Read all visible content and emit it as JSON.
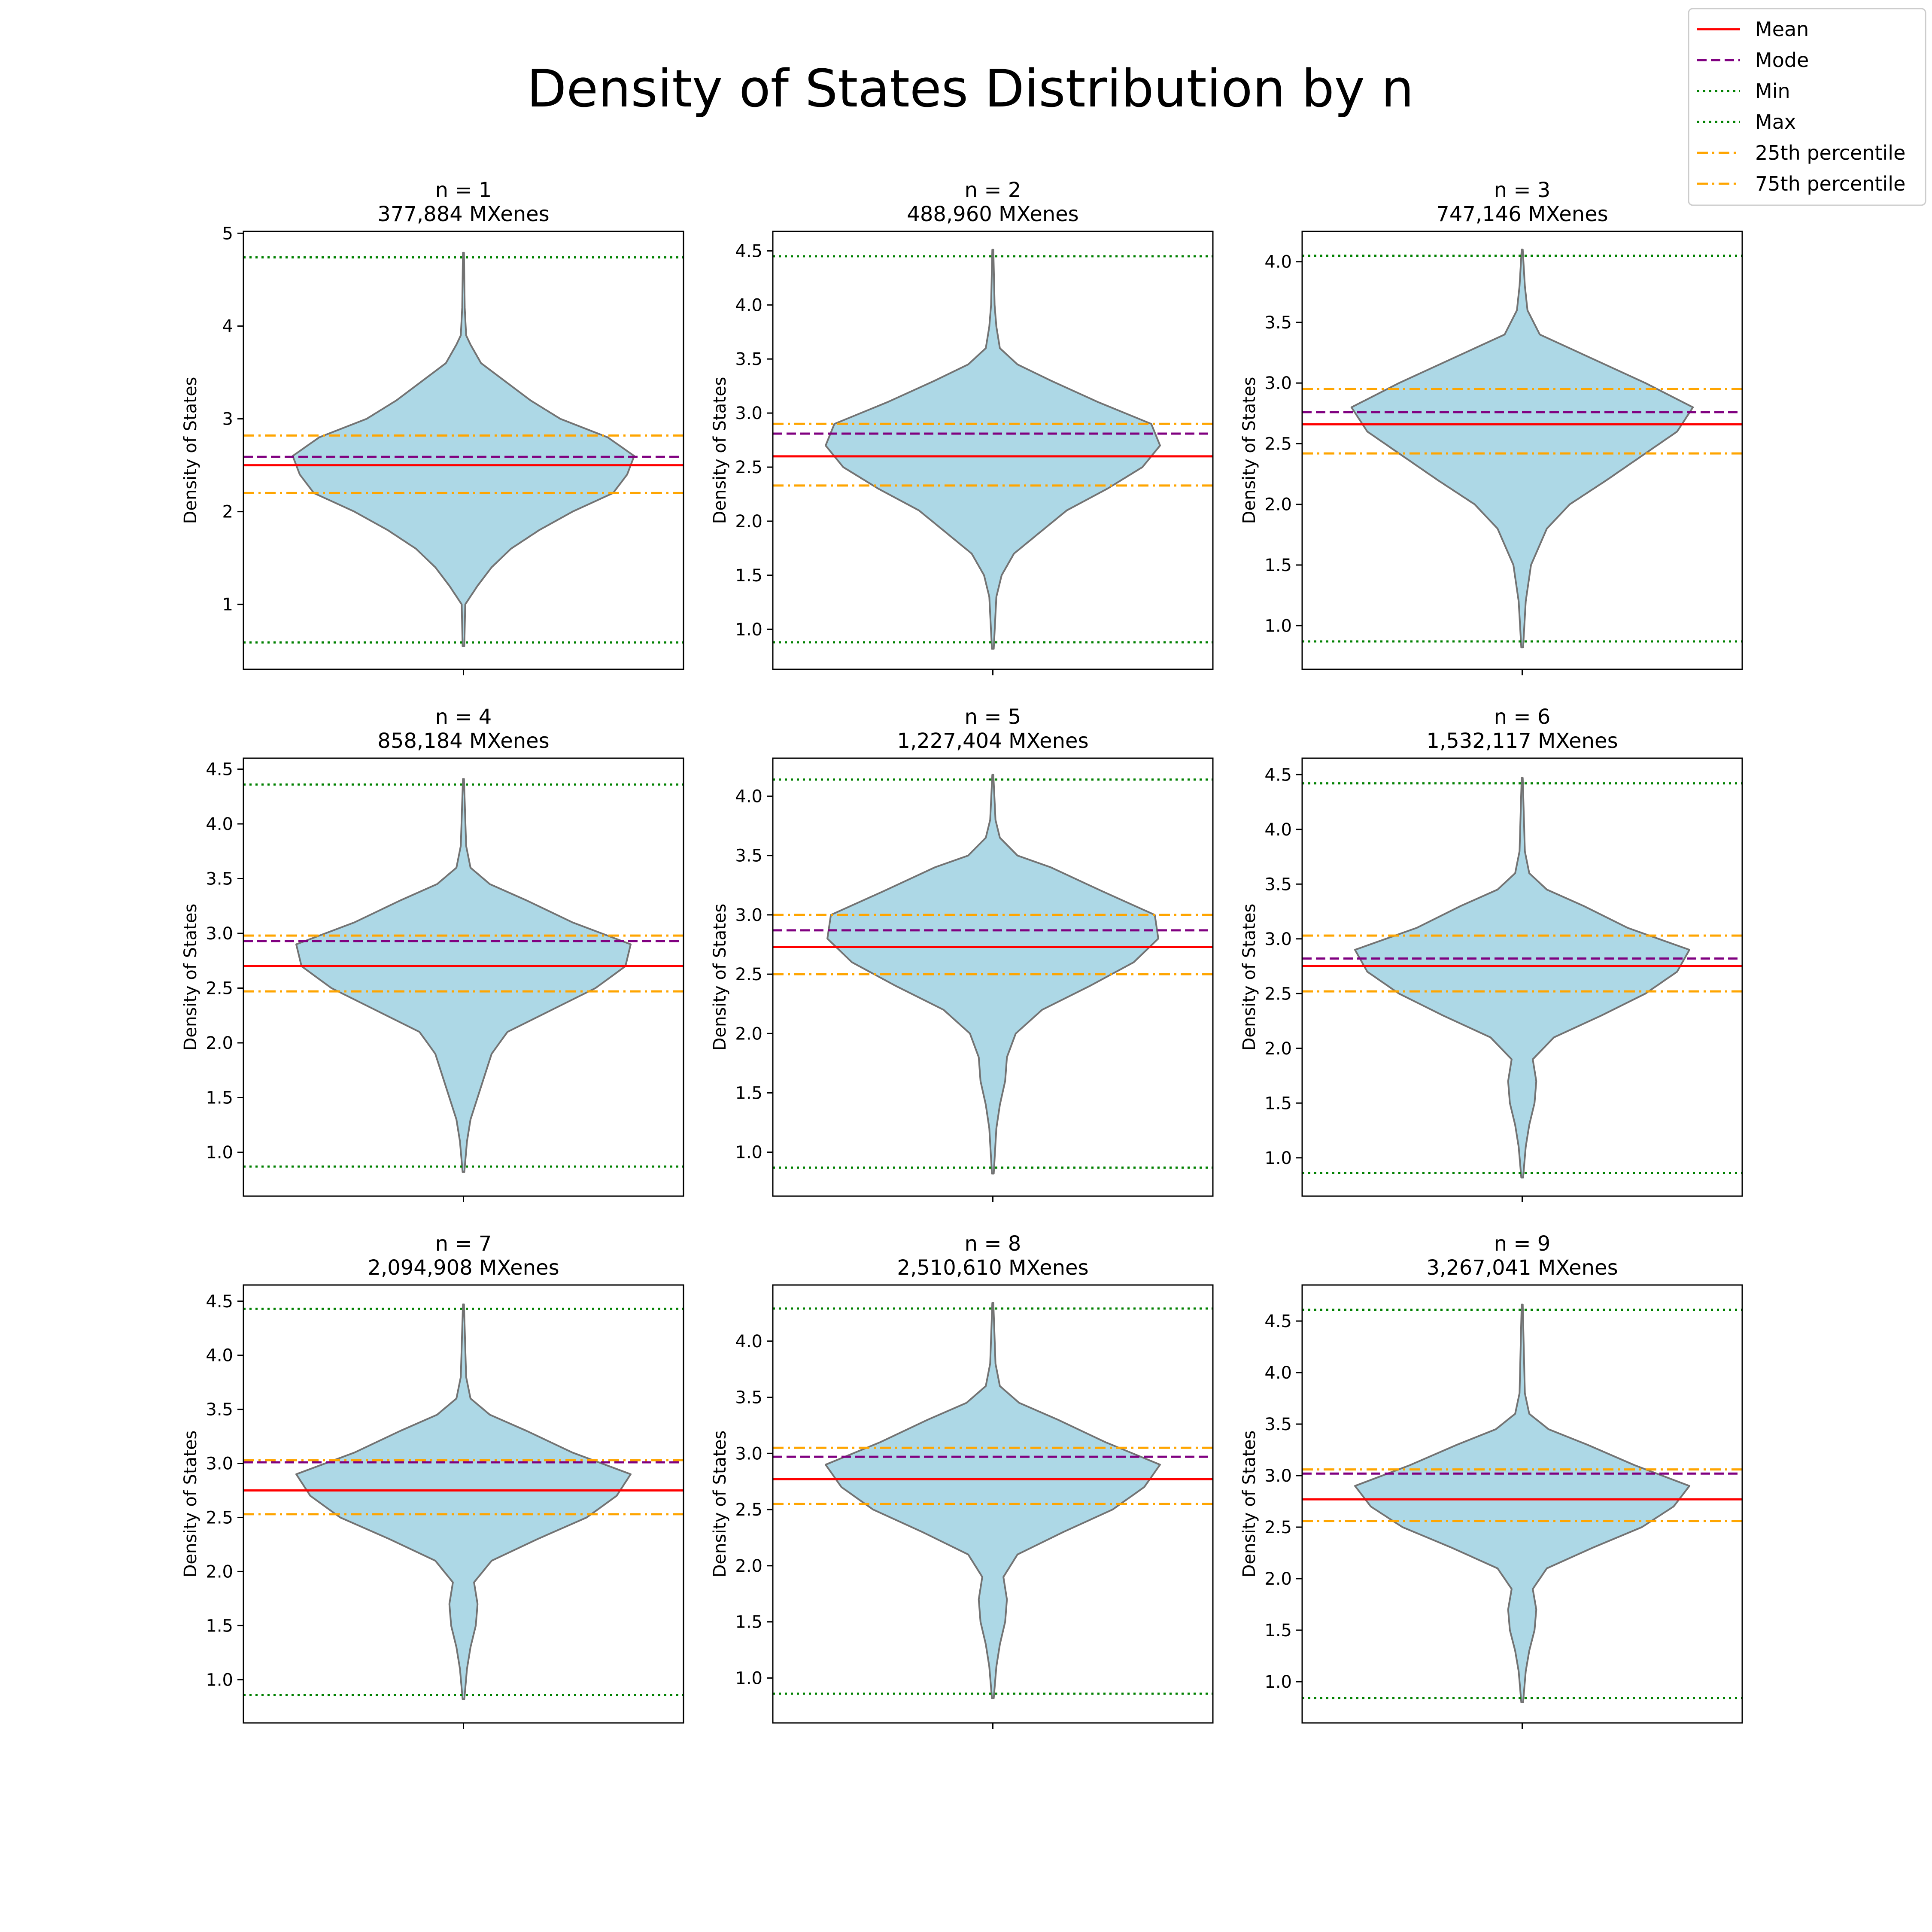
{
  "figure": {
    "title": "Density of States Distribution by n"
  },
  "legend": {
    "placement": "top-right",
    "items": [
      {
        "label": "Mean",
        "color": "#ff0000",
        "style": "solid"
      },
      {
        "label": "Mode",
        "color": "#800080",
        "style": "dashed"
      },
      {
        "label": "Min",
        "color": "#008000",
        "style": "dotted"
      },
      {
        "label": "Max",
        "color": "#008000",
        "style": "dotted"
      },
      {
        "label": "25th percentile",
        "color": "#ffa500",
        "style": "dashdot"
      },
      {
        "label": "75th percentile",
        "color": "#ffa500",
        "style": "dashdot"
      }
    ]
  },
  "colors": {
    "violin_fill": "#add8e6",
    "violin_edge": "#737373",
    "mean": "#ff0000",
    "mode": "#800080",
    "minmax": "#008000",
    "percentile": "#ffa500"
  },
  "chart_data": [
    {
      "type": "violin",
      "title_line1": "n = 1",
      "title_line2": "377,884 MXenes",
      "ylabel": "Density of States",
      "ylim": [
        0.3,
        5.02
      ],
      "yticks": [
        1,
        2,
        3,
        4,
        5
      ],
      "ytick_labels": [
        "1",
        "2",
        "3",
        "4",
        "5"
      ],
      "mean": 2.5,
      "mode": 2.59,
      "min": 0.59,
      "max": 4.74,
      "p25": 2.2,
      "p75": 2.82,
      "violin_min": 0.55,
      "violin_max": 4.79,
      "density": [
        [
          0.55,
          0.005
        ],
        [
          1.0,
          0.01
        ],
        [
          1.2,
          0.08
        ],
        [
          1.4,
          0.16
        ],
        [
          1.6,
          0.27
        ],
        [
          1.8,
          0.43
        ],
        [
          2.0,
          0.62
        ],
        [
          2.2,
          0.85
        ],
        [
          2.4,
          0.93
        ],
        [
          2.6,
          0.97
        ],
        [
          2.8,
          0.82
        ],
        [
          3.0,
          0.55
        ],
        [
          3.2,
          0.38
        ],
        [
          3.4,
          0.24
        ],
        [
          3.6,
          0.1
        ],
        [
          3.8,
          0.04
        ],
        [
          3.9,
          0.015
        ],
        [
          4.2,
          0.007
        ],
        [
          4.79,
          0.003
        ]
      ]
    },
    {
      "type": "violin",
      "title_line1": "n = 2",
      "title_line2": "488,960 MXenes",
      "ylabel": "Density of States",
      "ylim": [
        0.63,
        4.68
      ],
      "yticks": [
        1.0,
        1.5,
        2.0,
        2.5,
        3.0,
        3.5,
        4.0,
        4.5
      ],
      "ytick_labels": [
        "1.0",
        "1.5",
        "2.0",
        "2.5",
        "3.0",
        "3.5",
        "4.0",
        "4.5"
      ],
      "mean": 2.6,
      "mode": 2.81,
      "min": 0.88,
      "max": 4.45,
      "p25": 2.33,
      "p75": 2.9,
      "violin_min": 0.82,
      "violin_max": 4.51,
      "density": [
        [
          0.82,
          0.005
        ],
        [
          1.3,
          0.02
        ],
        [
          1.5,
          0.05
        ],
        [
          1.7,
          0.12
        ],
        [
          1.9,
          0.27
        ],
        [
          2.1,
          0.42
        ],
        [
          2.3,
          0.65
        ],
        [
          2.5,
          0.85
        ],
        [
          2.7,
          0.95
        ],
        [
          2.9,
          0.9
        ],
        [
          3.1,
          0.6
        ],
        [
          3.3,
          0.33
        ],
        [
          3.45,
          0.14
        ],
        [
          3.6,
          0.04
        ],
        [
          3.8,
          0.02
        ],
        [
          4.0,
          0.01
        ],
        [
          4.51,
          0.003
        ]
      ]
    },
    {
      "type": "violin",
      "title_line1": "n = 3",
      "title_line2": "747,146 MXenes",
      "ylabel": "Density of States",
      "ylim": [
        0.64,
        4.25
      ],
      "yticks": [
        1.0,
        1.5,
        2.0,
        2.5,
        3.0,
        3.5,
        4.0
      ],
      "ytick_labels": [
        "1.0",
        "1.5",
        "2.0",
        "2.5",
        "3.0",
        "3.5",
        "4.0"
      ],
      "mean": 2.66,
      "mode": 2.76,
      "min": 0.87,
      "max": 4.05,
      "p25": 2.42,
      "p75": 2.95,
      "violin_min": 0.82,
      "violin_max": 4.1,
      "density": [
        [
          0.82,
          0.005
        ],
        [
          1.2,
          0.02
        ],
        [
          1.5,
          0.05
        ],
        [
          1.8,
          0.14
        ],
        [
          2.0,
          0.27
        ],
        [
          2.2,
          0.48
        ],
        [
          2.4,
          0.68
        ],
        [
          2.6,
          0.88
        ],
        [
          2.8,
          0.97
        ],
        [
          3.0,
          0.7
        ],
        [
          3.2,
          0.4
        ],
        [
          3.4,
          0.1
        ],
        [
          3.6,
          0.03
        ],
        [
          3.8,
          0.015
        ],
        [
          4.1,
          0.003
        ]
      ]
    },
    {
      "type": "violin",
      "title_line1": "n = 4",
      "title_line2": "858,184 MXenes",
      "ylabel": "Density of States",
      "ylim": [
        0.6,
        4.6
      ],
      "yticks": [
        1.0,
        1.5,
        2.0,
        2.5,
        3.0,
        3.5,
        4.0,
        4.5
      ],
      "ytick_labels": [
        "1.0",
        "1.5",
        "2.0",
        "2.5",
        "3.0",
        "3.5",
        "4.0",
        "4.5"
      ],
      "mean": 2.7,
      "mode": 2.93,
      "min": 0.87,
      "max": 4.36,
      "p25": 2.47,
      "p75": 2.98,
      "violin_min": 0.82,
      "violin_max": 4.41,
      "density": [
        [
          0.82,
          0.005
        ],
        [
          1.1,
          0.02
        ],
        [
          1.3,
          0.04
        ],
        [
          1.6,
          0.1
        ],
        [
          1.9,
          0.16
        ],
        [
          2.1,
          0.25
        ],
        [
          2.3,
          0.5
        ],
        [
          2.5,
          0.75
        ],
        [
          2.7,
          0.92
        ],
        [
          2.9,
          0.95
        ],
        [
          3.1,
          0.62
        ],
        [
          3.3,
          0.36
        ],
        [
          3.45,
          0.15
        ],
        [
          3.6,
          0.04
        ],
        [
          3.8,
          0.015
        ],
        [
          4.41,
          0.003
        ]
      ]
    },
    {
      "type": "violin",
      "title_line1": "n = 5",
      "title_line2": "1,227,404 MXenes",
      "ylabel": "Density of States",
      "ylim": [
        0.63,
        4.32
      ],
      "yticks": [
        1.0,
        1.5,
        2.0,
        2.5,
        3.0,
        3.5,
        4.0
      ],
      "ytick_labels": [
        "1.0",
        "1.5",
        "2.0",
        "2.5",
        "3.0",
        "3.5",
        "4.0"
      ],
      "mean": 2.73,
      "mode": 2.87,
      "min": 0.87,
      "max": 4.14,
      "p25": 2.5,
      "p75": 3.0,
      "violin_min": 0.82,
      "violin_max": 4.18,
      "density": [
        [
          0.82,
          0.005
        ],
        [
          1.2,
          0.02
        ],
        [
          1.4,
          0.04
        ],
        [
          1.6,
          0.07
        ],
        [
          1.8,
          0.08
        ],
        [
          2.0,
          0.13
        ],
        [
          2.2,
          0.28
        ],
        [
          2.4,
          0.55
        ],
        [
          2.6,
          0.8
        ],
        [
          2.8,
          0.94
        ],
        [
          3.0,
          0.92
        ],
        [
          3.2,
          0.62
        ],
        [
          3.4,
          0.33
        ],
        [
          3.5,
          0.14
        ],
        [
          3.65,
          0.04
        ],
        [
          3.8,
          0.015
        ],
        [
          4.18,
          0.003
        ]
      ]
    },
    {
      "type": "violin",
      "title_line1": "n = 6",
      "title_line2": "1,532,117 MXenes",
      "ylabel": "Density of States",
      "ylim": [
        0.65,
        4.65
      ],
      "yticks": [
        1.0,
        1.5,
        2.0,
        2.5,
        3.0,
        3.5,
        4.0,
        4.5
      ],
      "ytick_labels": [
        "1.0",
        "1.5",
        "2.0",
        "2.5",
        "3.0",
        "3.5",
        "4.0",
        "4.5"
      ],
      "mean": 2.75,
      "mode": 2.82,
      "min": 0.86,
      "max": 4.42,
      "p25": 2.52,
      "p75": 3.03,
      "violin_min": 0.82,
      "violin_max": 4.47,
      "density": [
        [
          0.82,
          0.005
        ],
        [
          1.1,
          0.02
        ],
        [
          1.3,
          0.04
        ],
        [
          1.5,
          0.07
        ],
        [
          1.7,
          0.08
        ],
        [
          1.9,
          0.06
        ],
        [
          2.1,
          0.18
        ],
        [
          2.3,
          0.45
        ],
        [
          2.5,
          0.7
        ],
        [
          2.7,
          0.88
        ],
        [
          2.9,
          0.95
        ],
        [
          3.1,
          0.6
        ],
        [
          3.3,
          0.35
        ],
        [
          3.45,
          0.14
        ],
        [
          3.6,
          0.04
        ],
        [
          3.8,
          0.015
        ],
        [
          4.47,
          0.003
        ]
      ]
    },
    {
      "type": "violin",
      "title_line1": "n = 7",
      "title_line2": "2,094,908 MXenes",
      "ylabel": "Density of States",
      "ylim": [
        0.6,
        4.65
      ],
      "yticks": [
        1.0,
        1.5,
        2.0,
        2.5,
        3.0,
        3.5,
        4.0,
        4.5
      ],
      "ytick_labels": [
        "1.0",
        "1.5",
        "2.0",
        "2.5",
        "3.0",
        "3.5",
        "4.0",
        "4.5"
      ],
      "mean": 2.75,
      "mode": 3.01,
      "min": 0.86,
      "max": 4.43,
      "p25": 2.53,
      "p75": 3.03,
      "violin_min": 0.82,
      "violin_max": 4.47,
      "density": [
        [
          0.82,
          0.005
        ],
        [
          1.1,
          0.02
        ],
        [
          1.3,
          0.04
        ],
        [
          1.5,
          0.07
        ],
        [
          1.7,
          0.08
        ],
        [
          1.9,
          0.06
        ],
        [
          2.1,
          0.16
        ],
        [
          2.3,
          0.42
        ],
        [
          2.5,
          0.7
        ],
        [
          2.7,
          0.87
        ],
        [
          2.9,
          0.95
        ],
        [
          3.1,
          0.62
        ],
        [
          3.3,
          0.36
        ],
        [
          3.45,
          0.15
        ],
        [
          3.6,
          0.04
        ],
        [
          3.8,
          0.015
        ],
        [
          4.47,
          0.003
        ]
      ]
    },
    {
      "type": "violin",
      "title_line1": "n = 8",
      "title_line2": "2,510,610 MXenes",
      "ylabel": "Density of States",
      "ylim": [
        0.6,
        4.5
      ],
      "yticks": [
        1.0,
        1.5,
        2.0,
        2.5,
        3.0,
        3.5,
        4.0
      ],
      "ytick_labels": [
        "1.0",
        "1.5",
        "2.0",
        "2.5",
        "3.0",
        "3.5",
        "4.0"
      ],
      "mean": 2.77,
      "mode": 2.97,
      "min": 0.86,
      "max": 4.29,
      "p25": 2.55,
      "p75": 3.05,
      "violin_min": 0.82,
      "violin_max": 4.34,
      "density": [
        [
          0.82,
          0.005
        ],
        [
          1.1,
          0.02
        ],
        [
          1.3,
          0.04
        ],
        [
          1.5,
          0.07
        ],
        [
          1.7,
          0.08
        ],
        [
          1.9,
          0.06
        ],
        [
          2.1,
          0.14
        ],
        [
          2.3,
          0.4
        ],
        [
          2.5,
          0.68
        ],
        [
          2.7,
          0.86
        ],
        [
          2.9,
          0.95
        ],
        [
          3.1,
          0.64
        ],
        [
          3.3,
          0.37
        ],
        [
          3.45,
          0.15
        ],
        [
          3.6,
          0.04
        ],
        [
          3.8,
          0.015
        ],
        [
          4.34,
          0.003
        ]
      ]
    },
    {
      "type": "violin",
      "title_line1": "n = 9",
      "title_line2": "3,267,041 MXenes",
      "ylabel": "Density of States",
      "ylim": [
        0.6,
        4.85
      ],
      "yticks": [
        1.0,
        1.5,
        2.0,
        2.5,
        3.0,
        3.5,
        4.0,
        4.5
      ],
      "ytick_labels": [
        "1.0",
        "1.5",
        "2.0",
        "2.5",
        "3.0",
        "3.5",
        "4.0",
        "4.5"
      ],
      "mean": 2.77,
      "mode": 3.02,
      "min": 0.84,
      "max": 4.61,
      "p25": 2.56,
      "p75": 3.06,
      "violin_min": 0.8,
      "violin_max": 4.66,
      "density": [
        [
          0.8,
          0.005
        ],
        [
          1.1,
          0.02
        ],
        [
          1.3,
          0.04
        ],
        [
          1.5,
          0.07
        ],
        [
          1.7,
          0.08
        ],
        [
          1.9,
          0.06
        ],
        [
          2.1,
          0.14
        ],
        [
          2.3,
          0.4
        ],
        [
          2.5,
          0.68
        ],
        [
          2.7,
          0.86
        ],
        [
          2.9,
          0.95
        ],
        [
          3.1,
          0.64
        ],
        [
          3.3,
          0.37
        ],
        [
          3.45,
          0.15
        ],
        [
          3.6,
          0.04
        ],
        [
          3.8,
          0.015
        ],
        [
          4.66,
          0.003
        ]
      ]
    }
  ]
}
